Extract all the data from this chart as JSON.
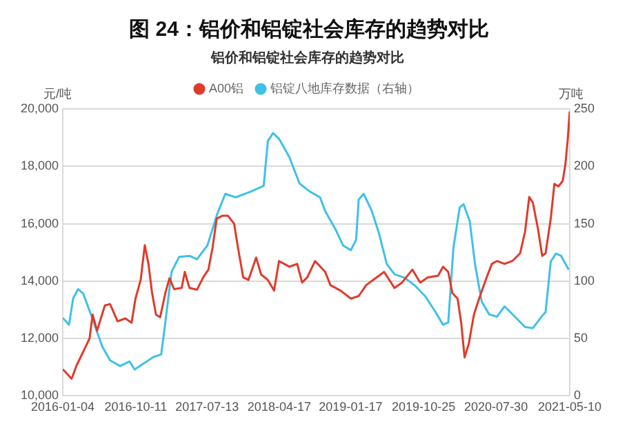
{
  "chart_data": {
    "type": "line",
    "title": "图 24：铝价和铝锭社会库存的趋势对比",
    "subtitle": "铝价和铝锭社会库存的趋势对比",
    "ylabel": "元/吨",
    "y2label": "万吨",
    "xlim": [
      "2016-01-04",
      "2021-05-10"
    ],
    "xticks": [
      "2016-01-04",
      "2016-10-11",
      "2017-07-13",
      "2018-04-17",
      "2019-01-17",
      "2019-10-25",
      "2020-07-30",
      "2021-05-10"
    ],
    "ylim": [
      10000,
      20000
    ],
    "yticks": [
      {
        "value": 10000,
        "label": "10,000"
      },
      {
        "value": 12000,
        "label": "12,000"
      },
      {
        "value": 14000,
        "label": "14,000"
      },
      {
        "value": 16000,
        "label": "16,000"
      },
      {
        "value": 18000,
        "label": "18,000"
      },
      {
        "value": 20000,
        "label": "20,000"
      }
    ],
    "y2lim": [
      0,
      250
    ],
    "y2ticks": [
      0,
      50,
      100,
      150,
      200,
      250
    ],
    "grid": "y",
    "legend": "top",
    "marker": "none",
    "line_style": "solid",
    "series": [
      {
        "name": "A00铝",
        "color": "#e03a2a",
        "x": [
          "2016-01-04",
          "2016-02-07",
          "2016-02-26",
          "2016-03-27",
          "2016-04-16",
          "2016-04-28",
          "2016-05-15",
          "2016-06-14",
          "2016-07-04",
          "2016-08-02",
          "2016-09-01",
          "2016-09-25",
          "2016-10-10",
          "2016-10-30",
          "2016-11-15",
          "2016-11-29",
          "2016-12-13",
          "2016-12-28",
          "2017-01-13",
          "2017-02-02",
          "2017-02-18",
          "2017-03-08",
          "2017-04-06",
          "2017-04-18",
          "2017-05-06",
          "2017-06-04",
          "2017-06-28",
          "2017-07-18",
          "2017-08-03",
          "2017-08-19",
          "2017-09-11",
          "2017-10-01",
          "2017-10-25",
          "2017-11-09",
          "2017-11-29",
          "2017-12-19",
          "2018-01-18",
          "2018-02-06",
          "2018-03-04",
          "2018-03-28",
          "2018-04-16",
          "2018-05-06",
          "2018-05-26",
          "2018-06-25",
          "2018-07-14",
          "2018-08-03",
          "2018-09-02",
          "2018-10-11",
          "2018-10-31",
          "2018-12-09",
          "2019-01-18",
          "2019-02-17",
          "2019-03-18",
          "2019-04-27",
          "2019-05-26",
          "2019-07-05",
          "2019-08-03",
          "2019-09-12",
          "2019-10-12",
          "2019-11-10",
          "2019-12-20",
          "2020-01-08",
          "2020-01-28",
          "2020-02-13",
          "2020-03-04",
          "2020-03-18",
          "2020-03-31",
          "2020-04-16",
          "2020-05-06",
          "2020-05-26",
          "2020-06-24",
          "2020-07-14",
          "2020-08-03",
          "2020-09-01",
          "2020-10-01",
          "2020-10-31",
          "2020-11-19",
          "2020-12-05",
          "2020-12-19",
          "2021-01-08",
          "2021-01-24",
          "2021-02-06",
          "2021-02-26",
          "2021-03-12",
          "2021-03-28",
          "2021-04-13",
          "2021-04-23",
          "2021-05-02",
          "2021-05-10"
        ],
        "values": [
          10930,
          10600,
          11060,
          11620,
          12000,
          12830,
          12270,
          13150,
          13200,
          12600,
          12700,
          12550,
          13390,
          14040,
          15250,
          14600,
          13580,
          12830,
          12740,
          13580,
          14100,
          13720,
          13760,
          14320,
          13760,
          13700,
          14130,
          14400,
          15160,
          16180,
          16280,
          16280,
          16000,
          15160,
          14130,
          14040,
          14820,
          14230,
          14040,
          13670,
          14700,
          14600,
          14500,
          14600,
          13950,
          14130,
          14700,
          14320,
          13860,
          13670,
          13390,
          13480,
          13860,
          14130,
          14320,
          13760,
          13950,
          14400,
          13950,
          14130,
          14190,
          14500,
          14320,
          13580,
          13390,
          12550,
          11340,
          11810,
          12830,
          13390,
          14130,
          14600,
          14700,
          14600,
          14700,
          14970,
          15720,
          16930,
          16740,
          15810,
          14880,
          14970,
          16180,
          17390,
          17300,
          17490,
          18040,
          18880,
          19910
        ]
      },
      {
        "name": "铝锭八地库存数据（右轴）",
        "color": "#3fc0e8",
        "axis": "y2",
        "x": [
          "2016-01-04",
          "2016-01-28",
          "2016-02-13",
          "2016-03-03",
          "2016-03-23",
          "2016-04-26",
          "2016-06-04",
          "2016-07-04",
          "2016-08-12",
          "2016-09-17",
          "2016-10-07",
          "2016-11-09",
          "2016-12-19",
          "2017-01-17",
          "2017-02-02",
          "2017-02-26",
          "2017-03-27",
          "2017-05-06",
          "2017-06-04",
          "2017-07-14",
          "2017-08-22",
          "2017-09-21",
          "2017-10-31",
          "2017-12-29",
          "2018-02-16",
          "2018-03-04",
          "2018-03-24",
          "2018-04-16",
          "2018-05-26",
          "2018-07-04",
          "2018-08-13",
          "2018-09-21",
          "2018-10-11",
          "2018-11-20",
          "2018-12-19",
          "2019-01-18",
          "2019-02-07",
          "2019-02-17",
          "2019-03-08",
          "2019-04-07",
          "2019-05-07",
          "2019-06-05",
          "2019-07-05",
          "2019-08-13",
          "2019-09-22",
          "2019-10-31",
          "2019-12-10",
          "2020-01-08",
          "2020-01-28",
          "2020-02-17",
          "2020-03-12",
          "2020-03-27",
          "2020-04-20",
          "2020-05-10",
          "2020-06-05",
          "2020-07-04",
          "2020-08-03",
          "2020-09-01",
          "2020-10-11",
          "2020-11-19",
          "2020-12-19",
          "2021-01-18",
          "2021-02-06",
          "2021-02-26",
          "2021-03-18",
          "2021-04-07",
          "2021-05-06"
        ],
        "values": [
          68,
          62,
          85,
          93,
          89,
          68,
          43,
          31,
          26,
          30,
          23,
          28,
          34,
          36,
          64,
          108,
          121,
          122,
          119,
          131,
          159,
          176,
          173,
          178,
          183,
          222,
          229,
          224,
          208,
          185,
          178,
          173,
          161,
          145,
          131,
          127,
          136,
          171,
          176,
          162,
          141,
          115,
          106,
          103,
          96,
          87,
          73,
          62,
          64,
          129,
          164,
          167,
          152,
          115,
          82,
          71,
          69,
          78,
          69,
          60,
          59,
          68,
          73,
          117,
          124,
          122,
          110
        ]
      }
    ]
  }
}
